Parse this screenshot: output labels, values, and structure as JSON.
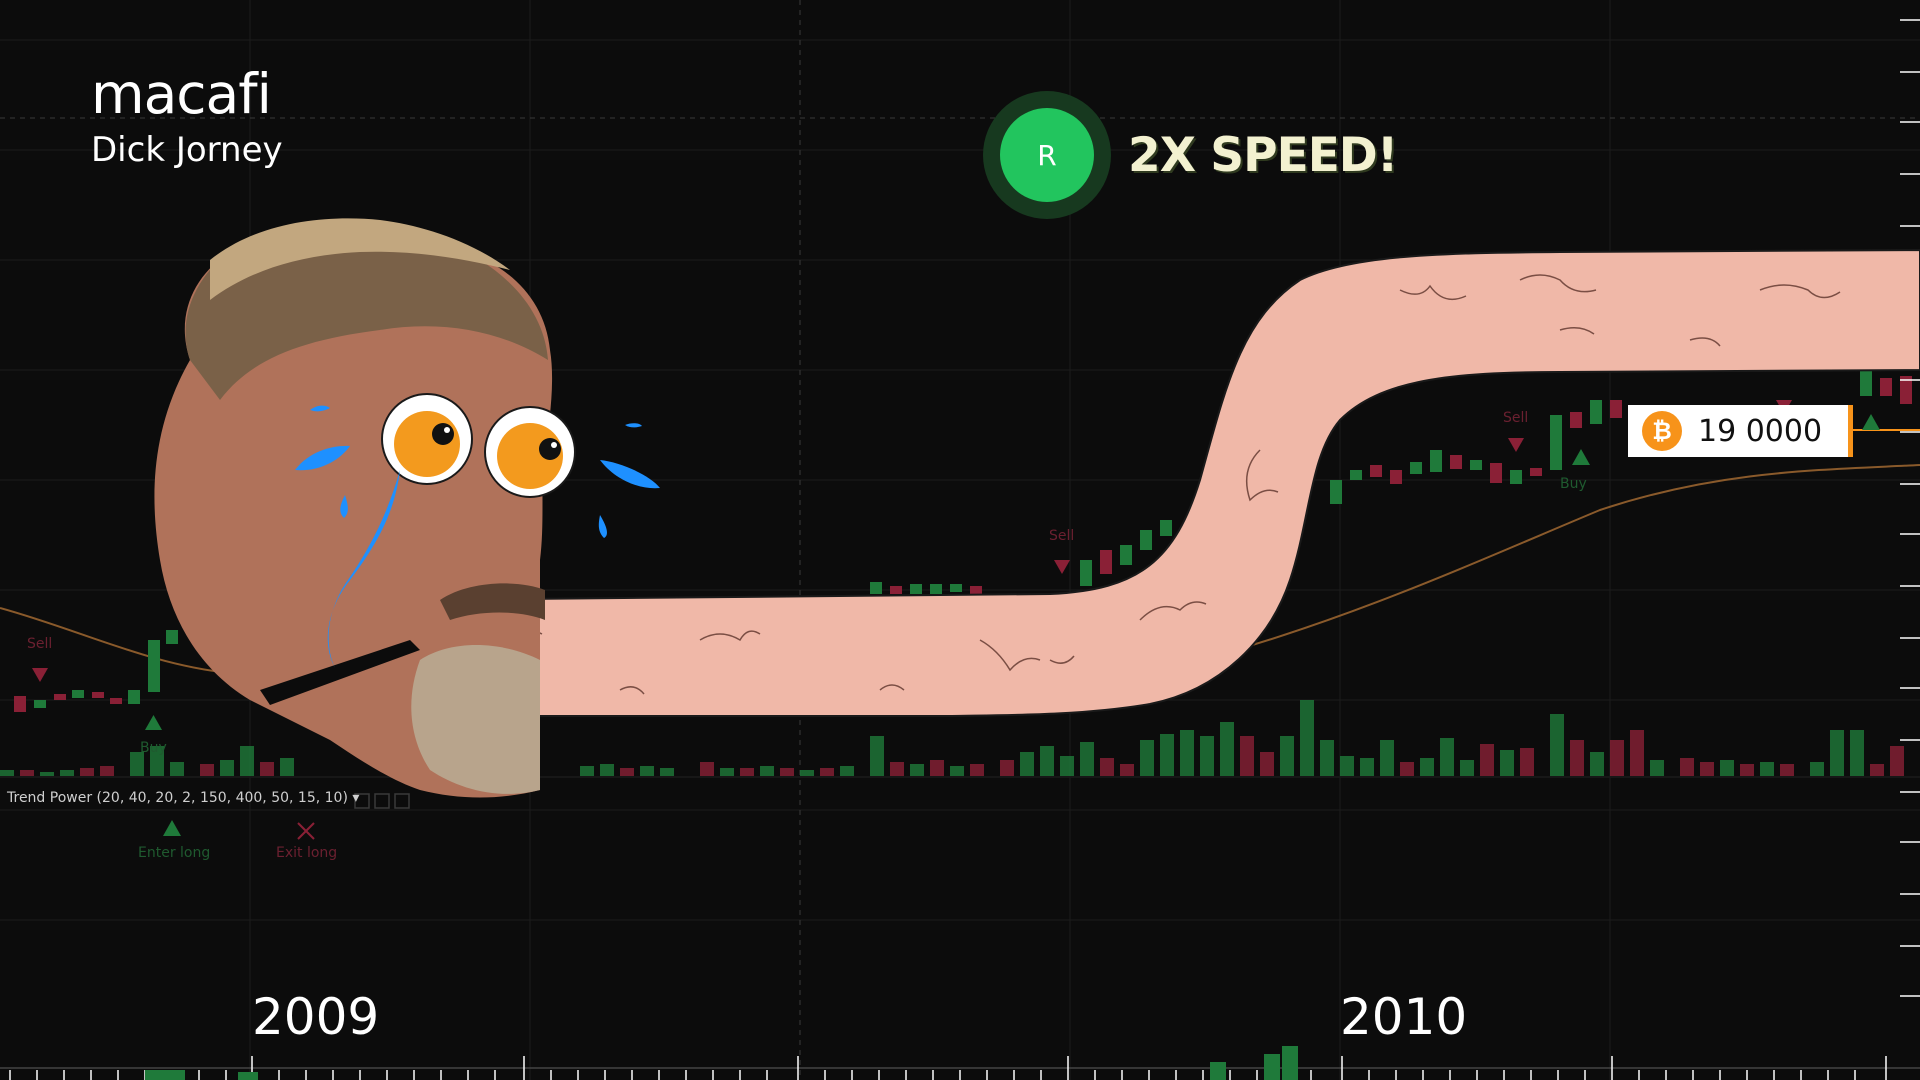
{
  "header": {
    "title": "macafi",
    "subtitle": "Dick Jorney"
  },
  "badge": {
    "key": "R",
    "label": "2X SPEED!",
    "ring_color": "#17391f",
    "fill_color": "#22c55e"
  },
  "price": {
    "icon": "bitcoin-icon",
    "value": "19 0000",
    "accent": "#f7931a"
  },
  "chart": {
    "indicator_label": "Trend Power (20, 40, 20, 2, 150, 400, 50, 15, 10) ▾",
    "signals": {
      "sell": "Sell",
      "buy": "Buy",
      "enter_long": "Enter long",
      "exit_long": "Exit long"
    },
    "years": [
      "2009",
      "2010"
    ],
    "colors": {
      "up": "#1f7a3a",
      "down": "#8a2036",
      "ma": "#8a5a2b",
      "background": "#0c0c0c"
    }
  }
}
